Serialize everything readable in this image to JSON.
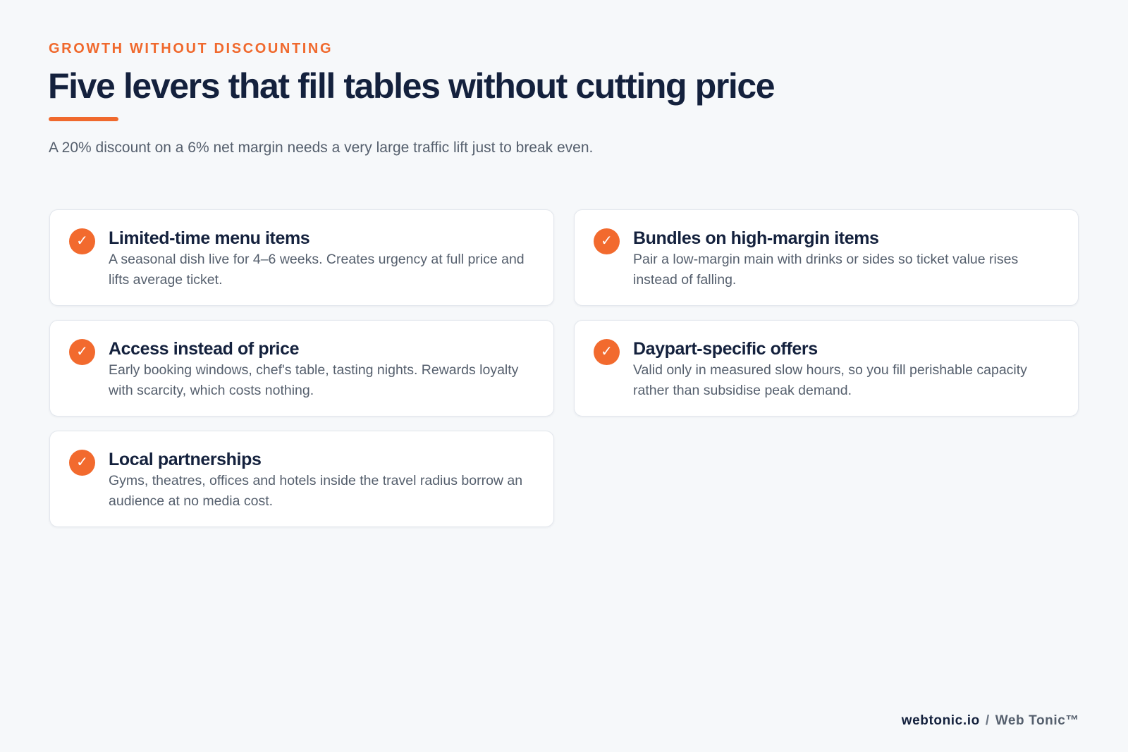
{
  "header": {
    "eyebrow": "GROWTH WITHOUT DISCOUNTING",
    "title": "Five levers that fill tables without cutting price",
    "subtitle": "A 20% discount on a 6% net margin needs a very large traffic lift just to break even."
  },
  "levers": [
    {
      "title": "Limited-time menu items",
      "description": "A seasonal dish live for 4–6 weeks. Creates urgency at full price and lifts average ticket."
    },
    {
      "title": "Bundles on high-margin items",
      "description": "Pair a low-margin main with drinks or sides so ticket value rises instead of falling."
    },
    {
      "title": "Access instead of price",
      "description": "Early booking windows, chef's table, tasting nights. Rewards loyalty with scarcity, which costs nothing."
    },
    {
      "title": "Daypart-specific offers",
      "description": "Valid only in measured slow hours, so you fill perishable capacity rather than subsidise peak demand."
    },
    {
      "title": "Local partnerships",
      "description": "Gyms, theatres, offices and hotels inside the travel radius borrow an audience at no media cost."
    }
  ],
  "icons": {
    "check": "✓"
  },
  "footer": {
    "domain": "webtonic.io",
    "separator": "/",
    "brand": "Web Tonic™"
  },
  "colors": {
    "accent": "#f0692d",
    "heading": "#14213d",
    "body_text": "#555f6d",
    "background": "#f6f8fa"
  }
}
